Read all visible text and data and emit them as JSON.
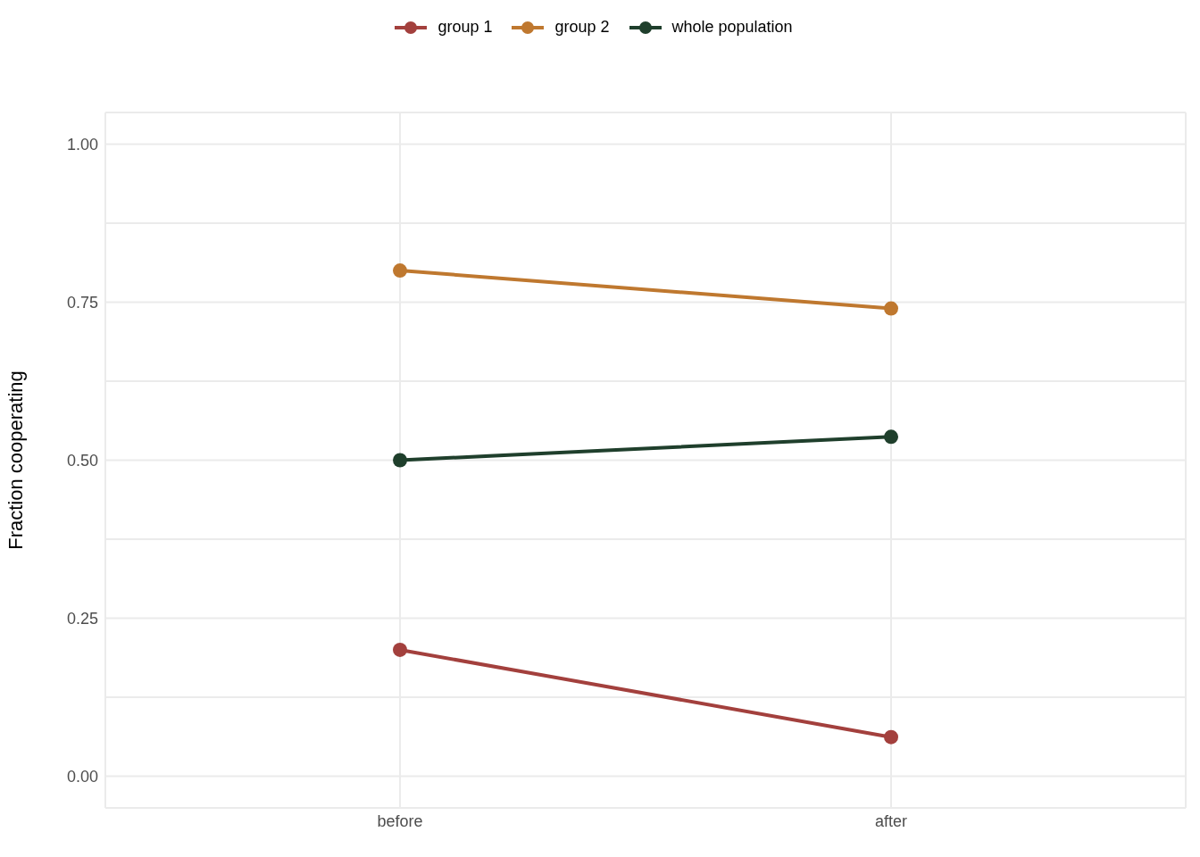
{
  "chart_data": {
    "type": "line",
    "ylabel": "Fraction cooperating",
    "categories": [
      "before",
      "after"
    ],
    "series": [
      {
        "name": "group 1",
        "color": "#a3403d",
        "values": [
          0.2,
          0.062
        ]
      },
      {
        "name": "group 2",
        "color": "#bf782f",
        "values": [
          0.8,
          0.74
        ]
      },
      {
        "name": "whole population",
        "color": "#1f3f2c",
        "values": [
          0.5,
          0.537
        ]
      }
    ],
    "ylim": [
      -0.05,
      1.05
    ],
    "yticks": [
      "0.00",
      {
        "value": 0.125,
        "label": null
      },
      {
        "value": 0.25,
        "label": "0.25"
      },
      {
        "value": 0.375,
        "label": null
      },
      {
        "value": 0.5,
        "label": "0.50"
      },
      {
        "value": 0.625,
        "label": null
      },
      {
        "value": 0.75,
        "label": "0.75"
      },
      {
        "value": 0.875,
        "label": null
      },
      {
        "value": 1,
        "label": "1.00"
      }
    ],
    "grid": true,
    "legend": "top",
    "marker": "circle",
    "line_style": "solid"
  }
}
